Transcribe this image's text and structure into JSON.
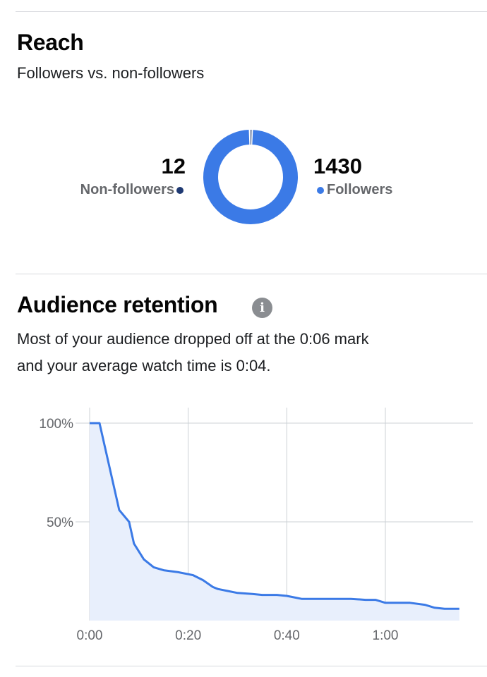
{
  "reach": {
    "title": "Reach",
    "subtitle": "Followers vs. non-followers",
    "non_followers": {
      "value": "12",
      "label": "Non-followers",
      "color": "#1f3a73"
    },
    "followers": {
      "value": "1430",
      "label": "Followers",
      "color": "#3b7ae6"
    }
  },
  "retention": {
    "title": "Audience retention",
    "info_icon": "info-icon",
    "description_line1": "Most of your audience dropped off at the 0:06 mark",
    "description_line2": "and your average watch time is 0:04."
  },
  "chart_data": [
    {
      "type": "pie",
      "title": "",
      "categories": [
        "Non-followers",
        "Followers"
      ],
      "values": [
        12,
        1430
      ],
      "colors": [
        "#1f3a73",
        "#3b7ae6"
      ]
    },
    {
      "type": "area",
      "title": "",
      "xlabel": "",
      "ylabel": "",
      "x_unit": "seconds",
      "xlim": [
        0,
        75
      ],
      "ylim": [
        0,
        100
      ],
      "x_ticks": [
        "0:00",
        "0:20",
        "0:40",
        "1:00"
      ],
      "y_ticks": [
        "100%",
        "50%"
      ],
      "grid": true,
      "color": "#3b7ae6",
      "fill": "#e8effc",
      "points": [
        [
          0,
          100
        ],
        [
          2,
          100
        ],
        [
          6,
          56
        ],
        [
          8,
          50
        ],
        [
          9,
          39
        ],
        [
          11,
          31
        ],
        [
          13,
          27
        ],
        [
          15,
          25.5
        ],
        [
          18,
          24.5
        ],
        [
          20,
          23.5
        ],
        [
          21,
          23
        ],
        [
          23,
          20.5
        ],
        [
          25,
          17
        ],
        [
          26,
          16
        ],
        [
          28,
          15
        ],
        [
          30,
          14
        ],
        [
          33,
          13.5
        ],
        [
          35,
          13
        ],
        [
          38,
          13
        ],
        [
          40,
          12.5
        ],
        [
          41,
          12
        ],
        [
          43,
          11
        ],
        [
          46,
          11
        ],
        [
          50,
          11
        ],
        [
          53,
          11
        ],
        [
          56,
          10.5
        ],
        [
          58,
          10.5
        ],
        [
          60,
          9
        ],
        [
          65,
          9
        ],
        [
          68,
          8
        ],
        [
          70,
          6.5
        ],
        [
          72,
          6
        ],
        [
          75,
          6
        ]
      ]
    }
  ]
}
